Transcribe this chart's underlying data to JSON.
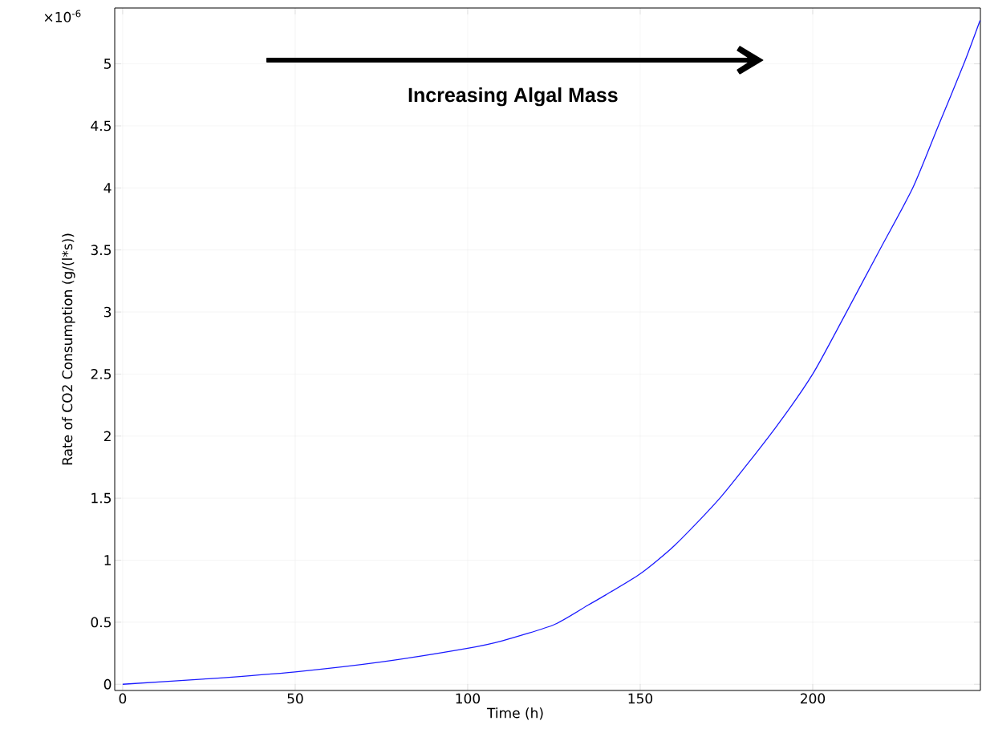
{
  "chart_data": {
    "type": "line",
    "xlabel": "Time (h)",
    "ylabel": "Rate of CO2 Consumption (g/(l*s))",
    "annotations": [
      "Increasing Algal Mass",
      "×10$^{-6}$"
    ],
    "x": [
      0,
      25,
      50,
      75,
      100,
      110,
      125,
      135,
      140,
      150,
      160,
      173.4,
      189,
      200,
      209.8,
      219.4,
      229,
      236.4,
      243.8,
      248.5
    ],
    "series": [
      {
        "color": "#1a1aff",
        "values": [
          0,
          0.045,
          0.1,
          0.18,
          0.29,
          0.35,
          0.48,
          0.64,
          0.72,
          0.89,
          1.12,
          1.51,
          2.06,
          2.5,
          3.0,
          3.5,
          4.0,
          4.5,
          5.0,
          5.35
        ]
      }
    ],
    "xlim": [
      -2.3,
      248.6
    ],
    "ylim": [
      -0.05,
      5.45
    ],
    "xticks": [
      0,
      50,
      100,
      150,
      200
    ],
    "yticks": [
      0,
      0.5,
      1,
      1.5,
      2,
      2.5,
      3,
      3.5,
      4,
      4.5,
      5
    ],
    "grid": true,
    "marker": "none",
    "line_style": "solid"
  }
}
